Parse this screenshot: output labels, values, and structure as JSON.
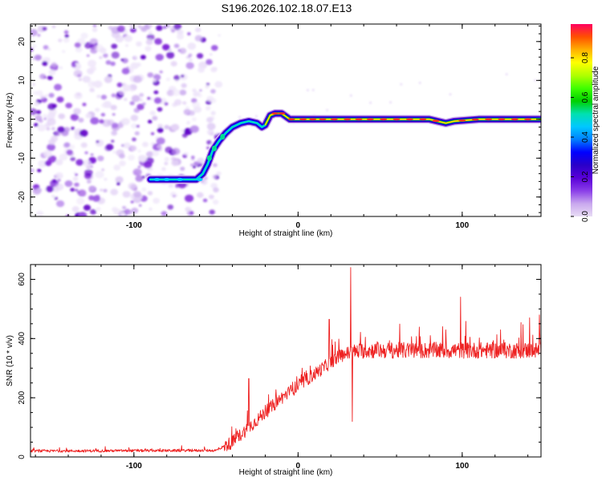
{
  "title": "S196.2026.102.18.07.E13",
  "chart_data": [
    {
      "type": "heatmap",
      "xlabel": "Height of straight line (km)",
      "ylabel": "Frequency (Hz)",
      "xlim": [
        -163,
        148
      ],
      "ylim": [
        -25,
        24.5
      ],
      "xticks": [
        -100,
        0,
        100
      ],
      "xtick_labels": [
        "-100",
        "0",
        "100"
      ],
      "yticks": [
        -20,
        -10,
        0,
        10,
        20
      ],
      "ytick_labels": [
        "-20",
        "-10",
        "0",
        "10",
        "20"
      ],
      "noise_region_x": [
        -163,
        -53
      ],
      "ridge": {
        "x": [
          -90,
          -80,
          -70,
          -62,
          -58,
          -55,
          -52,
          -48,
          -44,
          -40,
          -35,
          -30,
          -25,
          -22,
          -20,
          -17,
          -14,
          -10,
          -5,
          0,
          10,
          30,
          50,
          80,
          90,
          95,
          110,
          130,
          148
        ],
        "y": [
          -15.5,
          -15.5,
          -15.5,
          -15.5,
          -14,
          -11.5,
          -8,
          -5.5,
          -3.5,
          -2,
          -1,
          -0.5,
          -1,
          -2,
          -1.5,
          1,
          1.5,
          1.5,
          0,
          0,
          0,
          0,
          0,
          0,
          -1,
          -0.5,
          0,
          0,
          0
        ]
      },
      "colorbar": {
        "label": "Normalized spectral amplitude",
        "ticks": [
          0.0,
          0.2,
          0.4,
          0.6,
          0.8
        ],
        "tick_labels": [
          "0.0",
          "0.2",
          "0.4",
          "0.6",
          "0.8"
        ],
        "range": [
          0,
          0.97
        ],
        "stops": [
          "#e8ddf5",
          "#c9a8ee",
          "#8a3ee8",
          "#5a00d8",
          "#2a00c8",
          "#0000ff",
          "#0080ff",
          "#00c8ff",
          "#00e0b0",
          "#00d000",
          "#40ff00",
          "#b0ff00",
          "#ffff00",
          "#ffb000",
          "#ff5000",
          "#ff0060"
        ]
      }
    },
    {
      "type": "line",
      "xlabel": "Height of straight line (km)",
      "ylabel": "SNR (10 * v/v)",
      "xlim": [
        -163,
        148
      ],
      "ylim": [
        0,
        650
      ],
      "xticks": [
        -100,
        0,
        100
      ],
      "xtick_labels": [
        "-100",
        "0",
        "100"
      ],
      "yticks": [
        0,
        200,
        400,
        600
      ],
      "ytick_labels": [
        "0",
        "200",
        "400",
        "600"
      ],
      "color": "#ee2222",
      "envelope": {
        "x": [
          -163,
          -50,
          -40,
          -30,
          -20,
          -10,
          0,
          10,
          20,
          25,
          30,
          40,
          60,
          80,
          100,
          120,
          148
        ],
        "y": [
          20,
          22,
          50,
          100,
          150,
          200,
          240,
          280,
          320,
          340,
          350,
          360,
          360,
          360,
          360,
          360,
          360
        ]
      },
      "spikes": [
        {
          "x": -30,
          "y": 265
        },
        {
          "x": -20,
          "y": 175
        },
        {
          "x": 19,
          "y": 465
        },
        {
          "x": 32,
          "y": 640
        },
        {
          "x": 33,
          "y": 120
        },
        {
          "x": 88,
          "y": 440
        },
        {
          "x": 99,
          "y": 540
        },
        {
          "x": 141,
          "y": 470
        },
        {
          "x": 147,
          "y": 480
        }
      ]
    }
  ]
}
